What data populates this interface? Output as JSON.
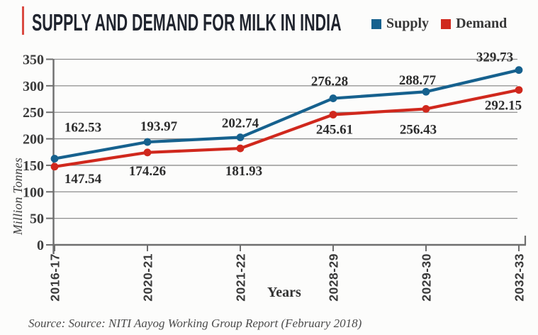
{
  "page": {
    "title": "SUPPLY AND DEMAND FOR MILK IN INDIA",
    "source_note": "Source: Source: NITI Aayog Working Group Report (February 2018)"
  },
  "legend": [
    {
      "label": "Supply",
      "color": "#16618e"
    },
    {
      "label": "Demand",
      "color": "#d0281d"
    }
  ],
  "chart_data": {
    "type": "line",
    "title": "SUPPLY AND DEMAND FOR MILK IN INDIA",
    "categories": [
      "2016-17",
      "2020-21",
      "2021-22",
      "2028-29",
      "2029-30",
      "2032-33"
    ],
    "series": [
      {
        "name": "Supply",
        "color": "#16618e",
        "values": [
          162.53,
          193.97,
          202.74,
          276.28,
          288.77,
          329.73
        ]
      },
      {
        "name": "Demand",
        "color": "#d0281d",
        "values": [
          147.54,
          174.26,
          181.93,
          245.61,
          256.43,
          292.15
        ]
      }
    ],
    "xlabel": "Years",
    "ylabel": "Million Tonnes",
    "ylim": [
      0,
      350
    ],
    "ytick_step": 50,
    "grid": true,
    "legend_position": "top-right",
    "grid_color": "#8d8d8d",
    "axis_color": "#6e6e6e",
    "label_color": "#2c2c2c"
  }
}
